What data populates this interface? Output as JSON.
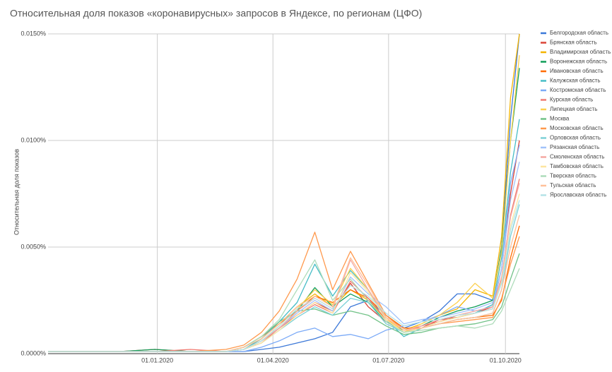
{
  "chart_data": {
    "type": "line",
    "title": "Относительная доля показов «коронавирусных» запросов в Яндексе, по регионам (ЦФО)",
    "y_label": "Относительная доля показов",
    "x": [
      "07.10.2019",
      "04.11.2019",
      "02.12.2019",
      "30.12.2019",
      "27.01.2020",
      "24.02.2020",
      "09.03.2020",
      "23.03.2020",
      "06.04.2020",
      "20.04.2020",
      "04.05.2020",
      "18.05.2020",
      "01.06.2020",
      "15.06.2020",
      "29.06.2020",
      "13.07.2020",
      "27.07.2020",
      "10.08.2020",
      "24.08.2020",
      "07.09.2020",
      "21.09.2020",
      "28.09.2020",
      "05.10.2020",
      "12.10.2020"
    ],
    "xlim": [
      "07.10.2019",
      "12.10.2020"
    ],
    "xticks": [
      "01.01.2020",
      "01.04.2020",
      "01.07.2020",
      "01.10.2020"
    ],
    "ylim": [
      0,
      0.015
    ],
    "yticks": [
      {
        "value": 0,
        "label": "0.0000%"
      },
      {
        "value": 0.005,
        "label": "0.0050%"
      },
      {
        "value": 0.01,
        "label": "0.0100%"
      },
      {
        "value": 0.015,
        "label": "0.0150%"
      }
    ],
    "grid": true,
    "legend": "right",
    "series": [
      {
        "name": "Белгородская область",
        "color": "#3c78d8",
        "values": [
          0.0001,
          0.0001,
          0.0001,
          0.0001,
          0.0001,
          0.0001,
          0.0001,
          0.0002,
          0.0003,
          0.0005,
          0.0007,
          0.001,
          0.0022,
          0.0025,
          0.0018,
          0.0012,
          0.0015,
          0.002,
          0.0028,
          0.0028,
          0.0025,
          0.005,
          0.011,
          0.015
        ]
      },
      {
        "name": "Брянская область",
        "color": "#db4437",
        "values": [
          0.0001,
          0.0001,
          0.0001,
          0.0002,
          0.0001,
          0.0001,
          0.0002,
          0.0006,
          0.0012,
          0.0018,
          0.0024,
          0.002,
          0.0033,
          0.0022,
          0.0015,
          0.001,
          0.0012,
          0.0016,
          0.0017,
          0.0019,
          0.0022,
          0.004,
          0.0075,
          0.01
        ]
      },
      {
        "name": "Владимирская область",
        "color": "#f4b400",
        "values": [
          0.0001,
          0.0001,
          0.0001,
          0.0001,
          0.0001,
          0.0001,
          0.0002,
          0.0007,
          0.0014,
          0.0022,
          0.0028,
          0.0022,
          0.003,
          0.0025,
          0.0016,
          0.0011,
          0.0014,
          0.0018,
          0.0021,
          0.003,
          0.0027,
          0.0055,
          0.012,
          0.015
        ]
      },
      {
        "name": "Воронежская область",
        "color": "#0f9d58",
        "values": [
          0.0001,
          0.0001,
          0.0001,
          0.0002,
          0.0001,
          0.0001,
          0.0002,
          0.0006,
          0.0012,
          0.002,
          0.0031,
          0.0022,
          0.0028,
          0.0024,
          0.0015,
          0.0011,
          0.0013,
          0.0017,
          0.002,
          0.0022,
          0.0025,
          0.005,
          0.01,
          0.0134
        ]
      },
      {
        "name": "Ивановская область",
        "color": "#ff6d00",
        "values": [
          0.0001,
          0.0001,
          0.0001,
          0.0001,
          0.0001,
          0.0001,
          0.0003,
          0.0008,
          0.0014,
          0.002,
          0.0027,
          0.0024,
          0.003,
          0.0026,
          0.0018,
          0.0012,
          0.0012,
          0.0014,
          0.0016,
          0.0017,
          0.0018,
          0.0025,
          0.0045,
          0.006
        ]
      },
      {
        "name": "Калужская область",
        "color": "#46bdc6",
        "values": [
          0.0001,
          0.0001,
          0.0001,
          0.0001,
          0.0001,
          0.0001,
          0.0002,
          0.0007,
          0.0015,
          0.0024,
          0.0042,
          0.0027,
          0.0039,
          0.003,
          0.0016,
          0.0008,
          0.0012,
          0.0015,
          0.0017,
          0.0019,
          0.0023,
          0.0045,
          0.0085,
          0.011
        ]
      },
      {
        "name": "Костромская область",
        "color": "#7baaf7",
        "values": [
          0.0001,
          0.0001,
          0.0001,
          0.0001,
          0.0001,
          0.0001,
          0.0001,
          0.0003,
          0.0006,
          0.001,
          0.0012,
          0.0008,
          0.0009,
          0.0007,
          0.0011,
          0.0013,
          0.0015,
          0.0018,
          0.0022,
          0.002,
          0.0022,
          0.004,
          0.008,
          0.0098
        ]
      },
      {
        "name": "Курская область",
        "color": "#f07b72",
        "values": [
          0.0001,
          0.0001,
          0.0001,
          0.0001,
          0.0002,
          0.0001,
          0.0002,
          0.0005,
          0.0012,
          0.0018,
          0.0023,
          0.0019,
          0.0034,
          0.0026,
          0.0016,
          0.001,
          0.0013,
          0.0015,
          0.0018,
          0.0019,
          0.0021,
          0.0035,
          0.0065,
          0.0082
        ]
      },
      {
        "name": "Липецкая область",
        "color": "#fcd04f",
        "values": [
          0.0001,
          0.0001,
          0.0001,
          0.0001,
          0.0001,
          0.0001,
          0.0002,
          0.0006,
          0.0013,
          0.0021,
          0.003,
          0.0023,
          0.004,
          0.003,
          0.0017,
          0.001,
          0.0014,
          0.0018,
          0.0024,
          0.0033,
          0.0026,
          0.0048,
          0.01,
          0.014
        ]
      },
      {
        "name": "Москва",
        "color": "#71c287",
        "values": [
          0.0001,
          0.0001,
          0.0001,
          0.0001,
          0.0001,
          0.0001,
          0.0003,
          0.0008,
          0.0015,
          0.002,
          0.0021,
          0.0018,
          0.002,
          0.0018,
          0.0013,
          0.0009,
          0.001,
          0.0012,
          0.0013,
          0.0014,
          0.0016,
          0.0022,
          0.0035,
          0.0047
        ]
      },
      {
        "name": "Московская область",
        "color": "#ff994d",
        "values": [
          0.0001,
          0.0001,
          0.0001,
          0.0001,
          0.0001,
          0.0002,
          0.0004,
          0.001,
          0.002,
          0.0035,
          0.0057,
          0.003,
          0.0048,
          0.0033,
          0.0018,
          0.0011,
          0.0012,
          0.0014,
          0.0015,
          0.0016,
          0.0017,
          0.0026,
          0.0042,
          0.0055
        ]
      },
      {
        "name": "Орловская область",
        "color": "#7ed1d7",
        "values": [
          0.0001,
          0.0001,
          0.0001,
          0.0001,
          0.0001,
          0.0001,
          0.0002,
          0.0005,
          0.0011,
          0.0017,
          0.0022,
          0.0018,
          0.0026,
          0.0024,
          0.0014,
          0.001,
          0.0012,
          0.0014,
          0.0016,
          0.0017,
          0.0019,
          0.003,
          0.0055,
          0.007
        ]
      },
      {
        "name": "Рязанская область",
        "color": "#a1c2fa",
        "values": [
          0.0001,
          0.0001,
          0.0001,
          0.0001,
          0.0001,
          0.0001,
          0.0002,
          0.0006,
          0.0012,
          0.0019,
          0.0025,
          0.002,
          0.0036,
          0.0028,
          0.0022,
          0.0014,
          0.0016,
          0.0017,
          0.0019,
          0.0021,
          0.0024,
          0.004,
          0.0072,
          0.009
        ]
      },
      {
        "name": "Смоленская область",
        "color": "#f5a9a3",
        "values": [
          0.0001,
          0.0001,
          0.0001,
          0.0001,
          0.0001,
          0.0001,
          0.0002,
          0.0006,
          0.0012,
          0.002,
          0.0026,
          0.0021,
          0.0044,
          0.003,
          0.0017,
          0.0011,
          0.0013,
          0.0016,
          0.0018,
          0.002,
          0.0022,
          0.0036,
          0.0064,
          0.008
        ]
      },
      {
        "name": "Тамбовская область",
        "color": "#fde5a0",
        "values": [
          0.0001,
          0.0001,
          0.0001,
          0.0001,
          0.0001,
          0.0001,
          0.0002,
          0.0005,
          0.0011,
          0.0018,
          0.0024,
          0.0019,
          0.0038,
          0.0029,
          0.0016,
          0.001,
          0.0012,
          0.0015,
          0.0017,
          0.0019,
          0.0021,
          0.0034,
          0.006,
          0.0075
        ]
      },
      {
        "name": "Тверская область",
        "color": "#aedcba",
        "values": [
          0.0001,
          0.0001,
          0.0001,
          0.0001,
          0.0001,
          0.0001,
          0.0003,
          0.0008,
          0.0016,
          0.003,
          0.0044,
          0.0025,
          0.0035,
          0.0025,
          0.0015,
          0.001,
          0.0011,
          0.0012,
          0.0013,
          0.0012,
          0.0014,
          0.002,
          0.003,
          0.004
        ]
      },
      {
        "name": "Тульская область",
        "color": "#ffc09a",
        "values": [
          0.0001,
          0.0001,
          0.0001,
          0.0001,
          0.0001,
          0.0001,
          0.0003,
          0.0007,
          0.0014,
          0.0022,
          0.0027,
          0.0022,
          0.0045,
          0.0032,
          0.0017,
          0.0011,
          0.0012,
          0.0014,
          0.0016,
          0.0017,
          0.0019,
          0.003,
          0.005,
          0.0065
        ]
      },
      {
        "name": "Ярославская область",
        "color": "#b5e3e7",
        "values": [
          0.0001,
          0.0001,
          0.0001,
          0.0001,
          0.0001,
          0.0001,
          0.0002,
          0.0006,
          0.0013,
          0.0021,
          0.0026,
          0.0021,
          0.0032,
          0.0027,
          0.0019,
          0.0013,
          0.0015,
          0.0016,
          0.0018,
          0.0019,
          0.0021,
          0.0033,
          0.0058,
          0.0072
        ]
      }
    ]
  }
}
